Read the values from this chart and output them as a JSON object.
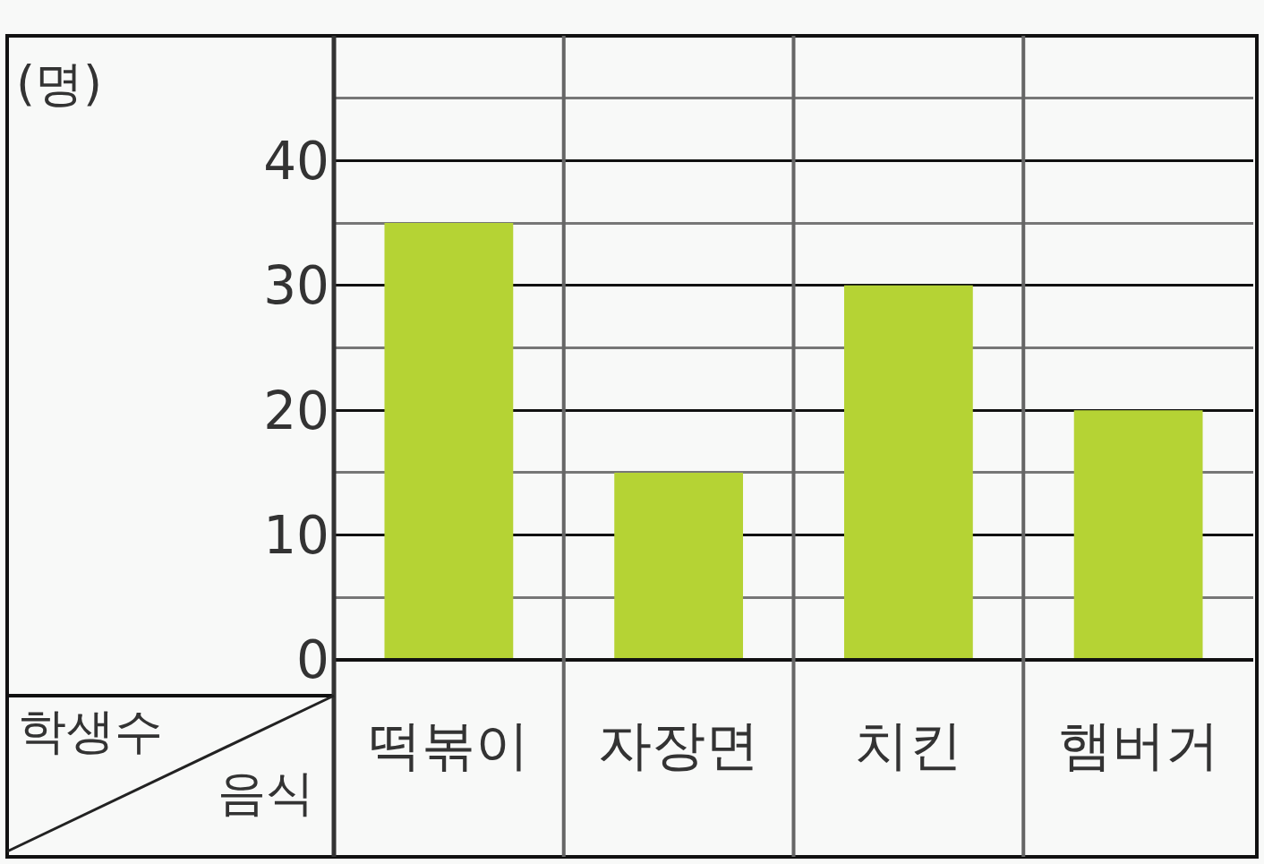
{
  "chart_data": {
    "type": "bar",
    "ylabel": "(명)",
    "xlabel": "음식",
    "annotations": [
      "학생수"
    ],
    "categories": [
      "떡볶이",
      "자장면",
      "치킨",
      "햄버거"
    ],
    "values": [
      35,
      15,
      30,
      20
    ],
    "color": "#b5d334",
    "ylim": [
      0,
      50
    ],
    "yticks": [
      0,
      {
        "value": 5,
        "label": null
      },
      10,
      {
        "value": 15,
        "label": null
      },
      20,
      {
        "value": 25,
        "label": null
      },
      30,
      {
        "value": 35,
        "label": null
      },
      40,
      {
        "value": 45,
        "label": null
      }
    ],
    "grid": "y"
  }
}
